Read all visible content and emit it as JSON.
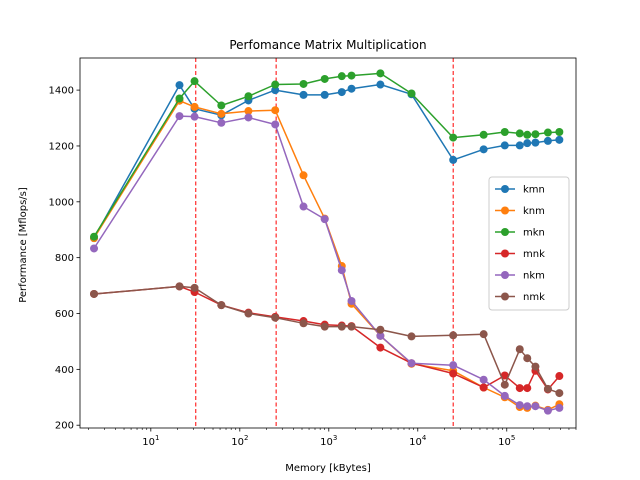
{
  "chart_data": {
    "type": "line",
    "title": "Perfomance Matrix Multiplication",
    "xlabel": "Memory [kBytes]",
    "ylabel": "Performance [Mflops/s]",
    "xscale": "log",
    "xlim": [
      1.6,
      600000
    ],
    "ylim": [
      190,
      1515
    ],
    "yticks": [
      200,
      400,
      600,
      800,
      1000,
      1200,
      1400
    ],
    "xticks": [
      {
        "value": 10,
        "base": "10",
        "exp": "1"
      },
      {
        "value": 100,
        "base": "10",
        "exp": "2"
      },
      {
        "value": 1000,
        "base": "10",
        "exp": "3"
      },
      {
        "value": 10000,
        "base": "10",
        "exp": "4"
      },
      {
        "value": 100000,
        "base": "10",
        "exp": "5"
      }
    ],
    "vlines": [
      32,
      256,
      25000
    ],
    "vline_color": "#ff0000",
    "legend_position": "center-right",
    "series": [
      {
        "name": "kmn",
        "color": "#1f77b4",
        "x": [
          2.3,
          21,
          31,
          62,
          125,
          250,
          520,
          900,
          1400,
          1800,
          3800,
          8500,
          25000,
          55000,
          95000,
          140000,
          170000,
          210000,
          290000,
          390000
        ],
        "y": [
          870,
          1418,
          1333,
          1310,
          1363,
          1400,
          1383,
          1383,
          1393,
          1405,
          1420,
          1385,
          1150,
          1188,
          1202,
          1202,
          1210,
          1212,
          1218,
          1222
        ]
      },
      {
        "name": "knm",
        "color": "#ff7f0e",
        "x": [
          2.3,
          21,
          31,
          62,
          125,
          250,
          520,
          900,
          1400,
          1800,
          3800,
          8500,
          25000,
          55000,
          95000,
          140000,
          170000,
          210000,
          290000,
          390000
        ],
        "y": [
          870,
          1362,
          1340,
          1315,
          1325,
          1328,
          1095,
          940,
          770,
          635,
          520,
          420,
          395,
          335,
          300,
          265,
          262,
          270,
          255,
          275
        ]
      },
      {
        "name": "mkn",
        "color": "#2ca02c",
        "x": [
          2.3,
          21,
          31,
          62,
          125,
          250,
          520,
          900,
          1400,
          1800,
          3800,
          8500,
          25000,
          55000,
          95000,
          140000,
          170000,
          210000,
          290000,
          390000
        ],
        "y": [
          875,
          1370,
          1432,
          1345,
          1378,
          1420,
          1422,
          1440,
          1450,
          1452,
          1460,
          1388,
          1230,
          1240,
          1250,
          1245,
          1240,
          1242,
          1248,
          1250
        ]
      },
      {
        "name": "mnk",
        "color": "#d62728",
        "x": [
          2.3,
          21,
          31,
          62,
          125,
          250,
          520,
          900,
          1400,
          1800,
          3800,
          8500,
          25000,
          55000,
          95000,
          140000,
          170000,
          210000,
          290000,
          390000
        ],
        "y": [
          670,
          697,
          677,
          630,
          603,
          588,
          573,
          560,
          557,
          555,
          478,
          422,
          385,
          335,
          378,
          333,
          333,
          395,
          328,
          376
        ]
      },
      {
        "name": "nkm",
        "color": "#9467bd",
        "x": [
          2.3,
          21,
          31,
          62,
          125,
          250,
          520,
          900,
          1400,
          1800,
          3800,
          8500,
          25000,
          55000,
          95000,
          140000,
          170000,
          210000,
          290000,
          390000
        ],
        "y": [
          833,
          1307,
          1305,
          1283,
          1302,
          1277,
          983,
          938,
          755,
          645,
          520,
          422,
          415,
          363,
          305,
          272,
          268,
          268,
          252,
          262
        ]
      },
      {
        "name": "nmk",
        "color": "#8c564b",
        "x": [
          2.3,
          21,
          31,
          62,
          125,
          250,
          520,
          900,
          1400,
          1800,
          3800,
          8500,
          25000,
          55000,
          95000,
          140000,
          170000,
          210000,
          290000,
          390000
        ],
        "y": [
          670,
          697,
          692,
          630,
          600,
          585,
          565,
          553,
          553,
          553,
          542,
          518,
          522,
          526,
          345,
          472,
          440,
          410,
          330,
          315
        ]
      }
    ]
  }
}
